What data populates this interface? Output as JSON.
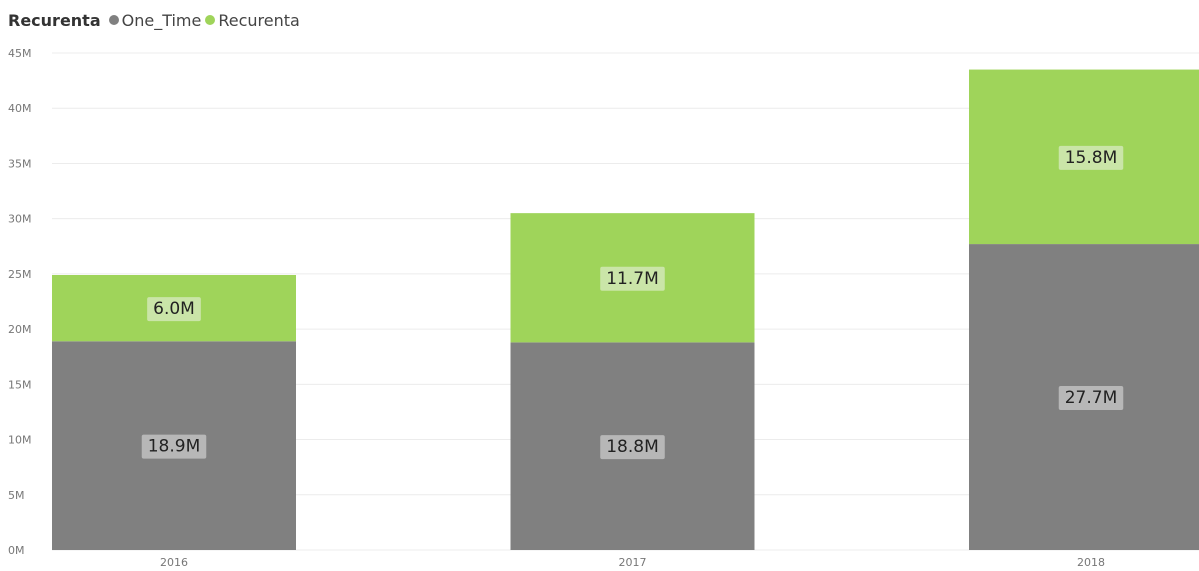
{
  "legend": {
    "title": "Recurenta",
    "items": [
      {
        "label": "One_Time",
        "color": "#808080"
      },
      {
        "label": "Recurenta",
        "color": "#9fd45a"
      }
    ]
  },
  "chart_data": {
    "type": "bar",
    "stacked": true,
    "categories": [
      "2016",
      "2017",
      "2018"
    ],
    "series": [
      {
        "name": "One_Time",
        "color": "#808080",
        "values": [
          18.9,
          18.8,
          27.7
        ],
        "labels": [
          "18.9M",
          "18.8M",
          "27.7M"
        ]
      },
      {
        "name": "Recurenta",
        "color": "#9fd45a",
        "values": [
          6.0,
          11.7,
          15.8
        ],
        "labels": [
          "6.0M",
          "11.7M",
          "15.8M"
        ]
      }
    ],
    "ylim": [
      0,
      45
    ],
    "yticks": [
      0,
      5,
      10,
      15,
      20,
      25,
      30,
      35,
      40,
      45
    ],
    "ytick_labels": [
      "0M",
      "5M",
      "10M",
      "15M",
      "20M",
      "25M",
      "30M",
      "35M",
      "40M",
      "45M"
    ],
    "grid": true,
    "legend_position": "top-left"
  }
}
